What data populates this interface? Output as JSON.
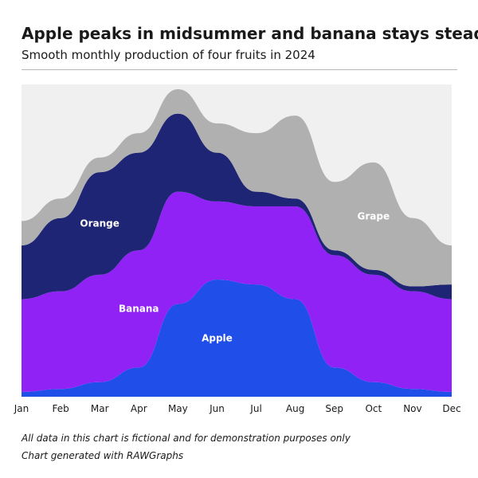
{
  "title": "Apple peaks in midsummer and banana stays steady",
  "subtitle": "Smooth monthly production of four fruits in 2024",
  "notes": [
    "All data in this chart is fictional and for demonstration purposes only",
    "Chart generated with RAWGraphs"
  ],
  "chart_data": {
    "type": "streamgraph",
    "categories": [
      "Jan",
      "Feb",
      "Mar",
      "Apr",
      "May",
      "Jun",
      "Jul",
      "Aug",
      "Sep",
      "Oct",
      "Nov",
      "Dec"
    ],
    "series": [
      {
        "name": "Apple",
        "color": "#1f4fe8",
        "values": [
          5,
          8,
          15,
          30,
          95,
          120,
          115,
          100,
          30,
          15,
          8,
          5
        ]
      },
      {
        "name": "Banana",
        "color": "#9022f5",
        "values": [
          95,
          100,
          110,
          120,
          115,
          80,
          80,
          95,
          115,
          110,
          100,
          95
        ]
      },
      {
        "name": "Orange",
        "color": "#1e2575",
        "values": [
          55,
          75,
          105,
          100,
          80,
          50,
          15,
          8,
          5,
          5,
          5,
          15
        ]
      },
      {
        "name": "Grape",
        "color": "#b0b0b0",
        "values": [
          25,
          20,
          15,
          20,
          25,
          30,
          60,
          85,
          70,
          110,
          70,
          40
        ]
      }
    ],
    "labels_shown": [
      "Apple",
      "Banana",
      "Orange",
      "Grape"
    ],
    "grid": false,
    "legend": "inline labels"
  }
}
